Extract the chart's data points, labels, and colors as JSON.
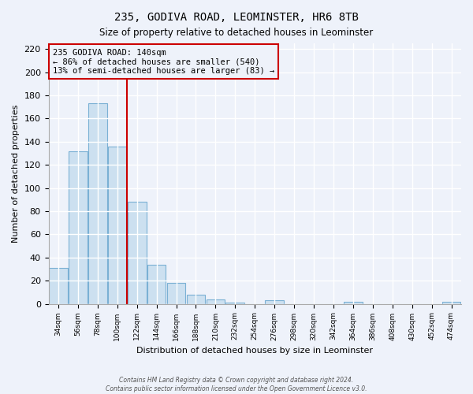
{
  "title": "235, GODIVA ROAD, LEOMINSTER, HR6 8TB",
  "subtitle": "Size of property relative to detached houses in Leominster",
  "xlabel": "Distribution of detached houses by size in Leominster",
  "ylabel": "Number of detached properties",
  "bar_color": "#cce0f0",
  "bar_edge_color": "#7ab0d4",
  "categories": [
    "34sqm",
    "56sqm",
    "78sqm",
    "100sqm",
    "122sqm",
    "144sqm",
    "166sqm",
    "188sqm",
    "210sqm",
    "232sqm",
    "254sqm",
    "276sqm",
    "298sqm",
    "320sqm",
    "342sqm",
    "364sqm",
    "386sqm",
    "408sqm",
    "430sqm",
    "452sqm",
    "474sqm"
  ],
  "values": [
    31,
    132,
    173,
    136,
    88,
    34,
    18,
    8,
    4,
    1,
    0,
    3,
    0,
    0,
    0,
    2,
    0,
    0,
    0,
    0,
    2
  ],
  "ylim": [
    0,
    225
  ],
  "yticks": [
    0,
    20,
    40,
    60,
    80,
    100,
    120,
    140,
    160,
    180,
    200,
    220
  ],
  "vline_position": 3.5,
  "vline_color": "#cc0000",
  "annotation_title": "235 GODIVA ROAD: 140sqm",
  "annotation_line1": "← 86% of detached houses are smaller (540)",
  "annotation_line2": "13% of semi-detached houses are larger (83) →",
  "footer1": "Contains HM Land Registry data © Crown copyright and database right 2024.",
  "footer2": "Contains public sector information licensed under the Open Government Licence v3.0.",
  "background_color": "#eef2fa",
  "grid_color": "#ffffff",
  "box_color": "#cc0000"
}
